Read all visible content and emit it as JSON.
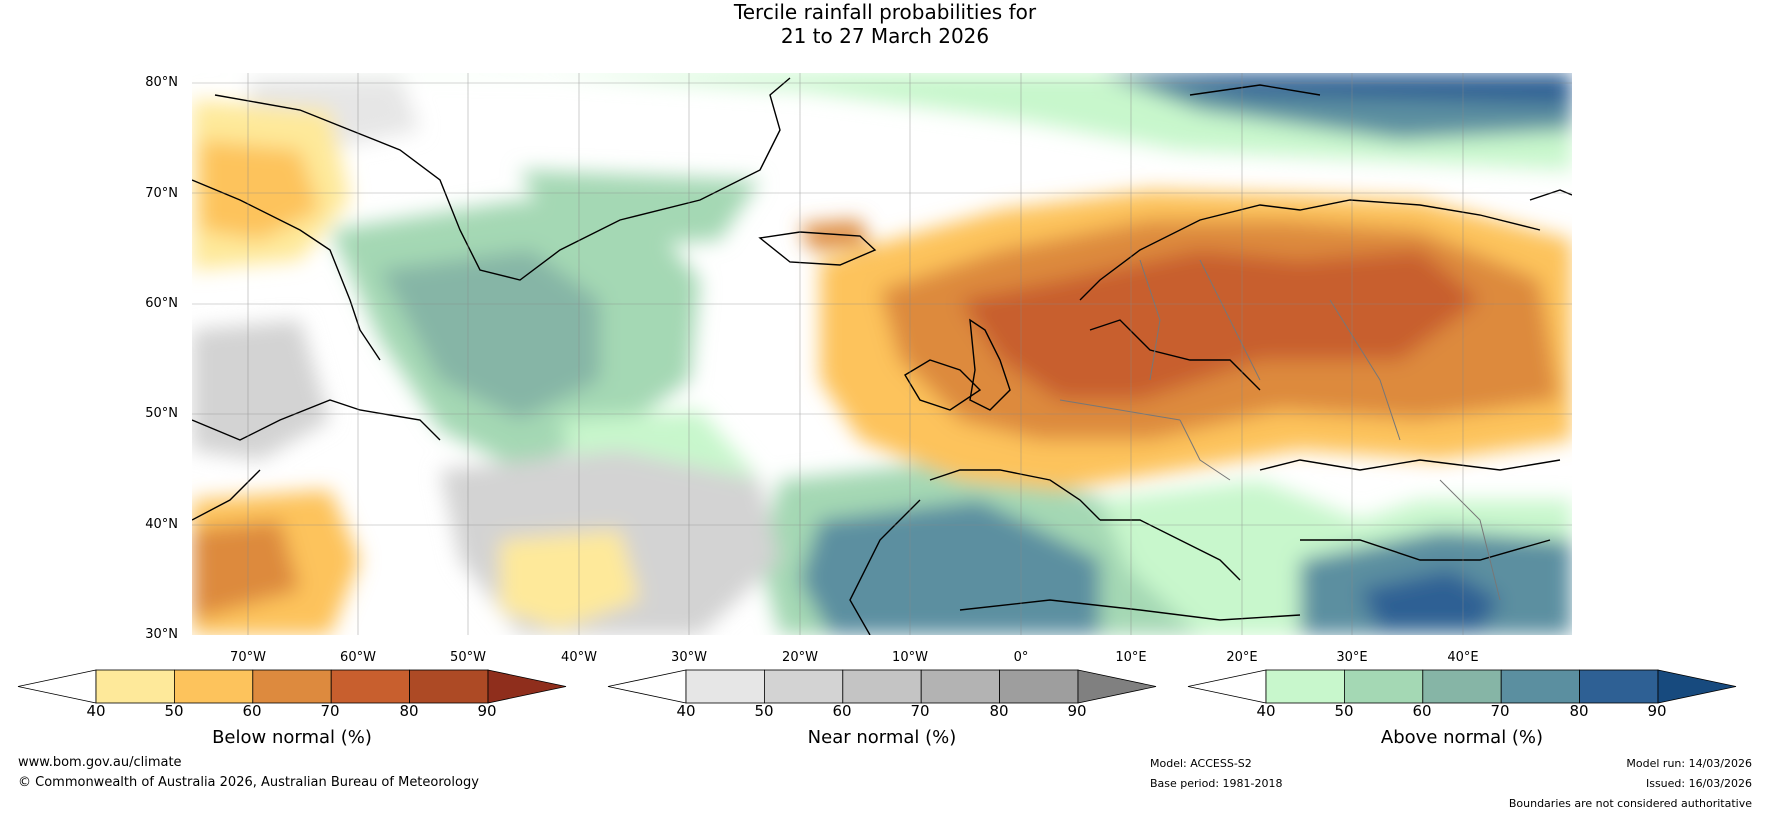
{
  "title": {
    "line1": "Tercile rainfall probabilities for",
    "line2": "21 to 27 March 2026"
  },
  "map": {
    "lat_labels": [
      "80°N",
      "70°N",
      "60°N",
      "50°N",
      "40°N",
      "30°N"
    ],
    "lon_labels": [
      "70°W",
      "60°W",
      "50°W",
      "40°W",
      "30°W",
      "20°W",
      "10°W",
      "0°",
      "10°E",
      "20°E",
      "30°E",
      "40°E"
    ],
    "extent": {
      "lon_min": -75,
      "lon_max": 50,
      "lat_min": 30,
      "lat_max": 81
    }
  },
  "colorbars": {
    "below": {
      "label": "Below normal (%)",
      "ticks": [
        "40",
        "50",
        "60",
        "70",
        "80",
        "90"
      ],
      "colors": [
        "#ffffff",
        "#fee99a",
        "#fdc35c",
        "#dd8a3e",
        "#c85f2e",
        "#ad4a25",
        "#8f2e1c"
      ]
    },
    "near": {
      "label": "Near normal (%)",
      "ticks": [
        "40",
        "50",
        "60",
        "70",
        "80",
        "90"
      ],
      "colors": [
        "#ffffff",
        "#e6e6e6",
        "#d3d3d3",
        "#c4c4c4",
        "#b3b3b3",
        "#9e9e9e",
        "#808080"
      ]
    },
    "above": {
      "label": "Above normal (%)",
      "ticks": [
        "40",
        "50",
        "60",
        "70",
        "80",
        "90"
      ],
      "colors": [
        "#ffffff",
        "#c8f7cc",
        "#a4d8b4",
        "#86b5a6",
        "#5b8fa0",
        "#2e6094",
        "#174a7e"
      ]
    }
  },
  "footer": {
    "website": "www.bom.gov.au/climate",
    "copyright": "© Commonwealth of Australia 2026, Australian Bureau of Meteorology",
    "model": "Model: ACCESS-S2",
    "base_period": "Base period: 1981-2018",
    "model_run": "Model run: 14/03/2026",
    "issued": "Issued: 16/03/2026",
    "disclaimer": "Boundaries are not considered authoritative"
  }
}
